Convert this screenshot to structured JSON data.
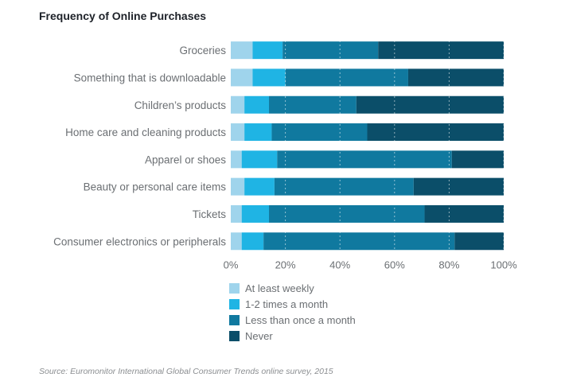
{
  "chart_data": {
    "type": "bar",
    "orientation": "horizontal",
    "stacked": true,
    "title": "Frequency of Online Purchases",
    "categories": [
      "Groceries",
      "Something that is downloadable",
      "Children’s products",
      "Home care and cleaning products",
      "Apparel or shoes",
      "Beauty or personal care items",
      "Tickets",
      "Consumer electronics or peripherals"
    ],
    "series": [
      {
        "name": "At least weekly",
        "color": "#9fd4ec",
        "values": [
          8,
          8,
          5,
          5,
          4,
          5,
          4,
          4
        ]
      },
      {
        "name": "1-2 times a month",
        "color": "#1fb4e4",
        "values": [
          11,
          12,
          9,
          10,
          13,
          11,
          10,
          8
        ]
      },
      {
        "name": "Less than once a month",
        "color": "#10799f",
        "values": [
          35,
          45,
          32,
          35,
          64,
          51,
          57,
          70
        ]
      },
      {
        "name": "Never",
        "color": "#0b4e69",
        "values": [
          46,
          35,
          54,
          50,
          19,
          33,
          29,
          18
        ]
      }
    ],
    "xticks": [
      "0%",
      "20%",
      "40%",
      "60%",
      "80%",
      "100%"
    ],
    "xlim": [
      0,
      100
    ],
    "grid": true,
    "legend_position": "bottom"
  },
  "source": "Source: Euromonitor International Global Consumer Trends online survey, 2015"
}
